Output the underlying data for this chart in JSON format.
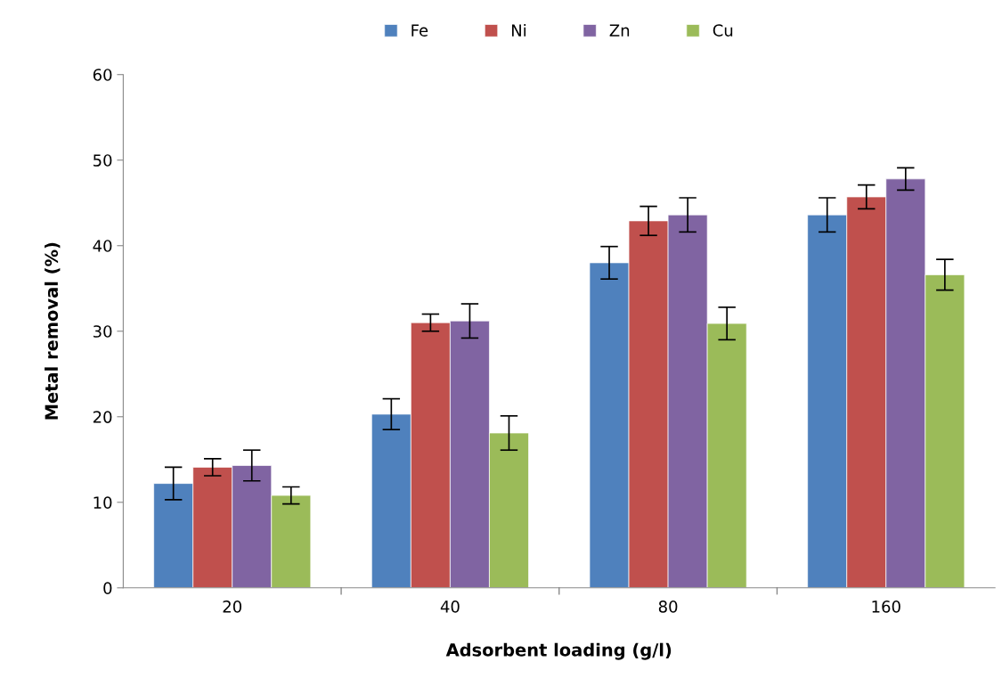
{
  "chart_data": {
    "type": "bar",
    "xlabel": "Adsorbent loading (g/l)",
    "ylabel": "Metal removal (%)",
    "categories": [
      "20",
      "40",
      "80",
      "160"
    ],
    "series": [
      {
        "name": "Fe",
        "color": "#4f81bd",
        "values": [
          12.2,
          20.3,
          38.0,
          43.6
        ],
        "errors": [
          1.9,
          1.8,
          1.9,
          2.0
        ]
      },
      {
        "name": "Ni",
        "color": "#c0504d",
        "values": [
          14.1,
          31.0,
          42.9,
          45.7
        ],
        "errors": [
          1.0,
          1.0,
          1.7,
          1.4
        ]
      },
      {
        "name": "Zn",
        "color": "#8064a2",
        "values": [
          14.3,
          31.2,
          43.6,
          47.8
        ],
        "errors": [
          1.8,
          2.0,
          2.0,
          1.3
        ]
      },
      {
        "name": "Cu",
        "color": "#9bbb59",
        "values": [
          10.8,
          18.1,
          30.9,
          36.6
        ],
        "errors": [
          1.0,
          2.0,
          1.9,
          1.8
        ]
      }
    ],
    "ylim": [
      0,
      60
    ],
    "yticks": [
      0,
      10,
      20,
      30,
      40,
      50,
      60
    ],
    "grid": false,
    "legend": "top"
  }
}
